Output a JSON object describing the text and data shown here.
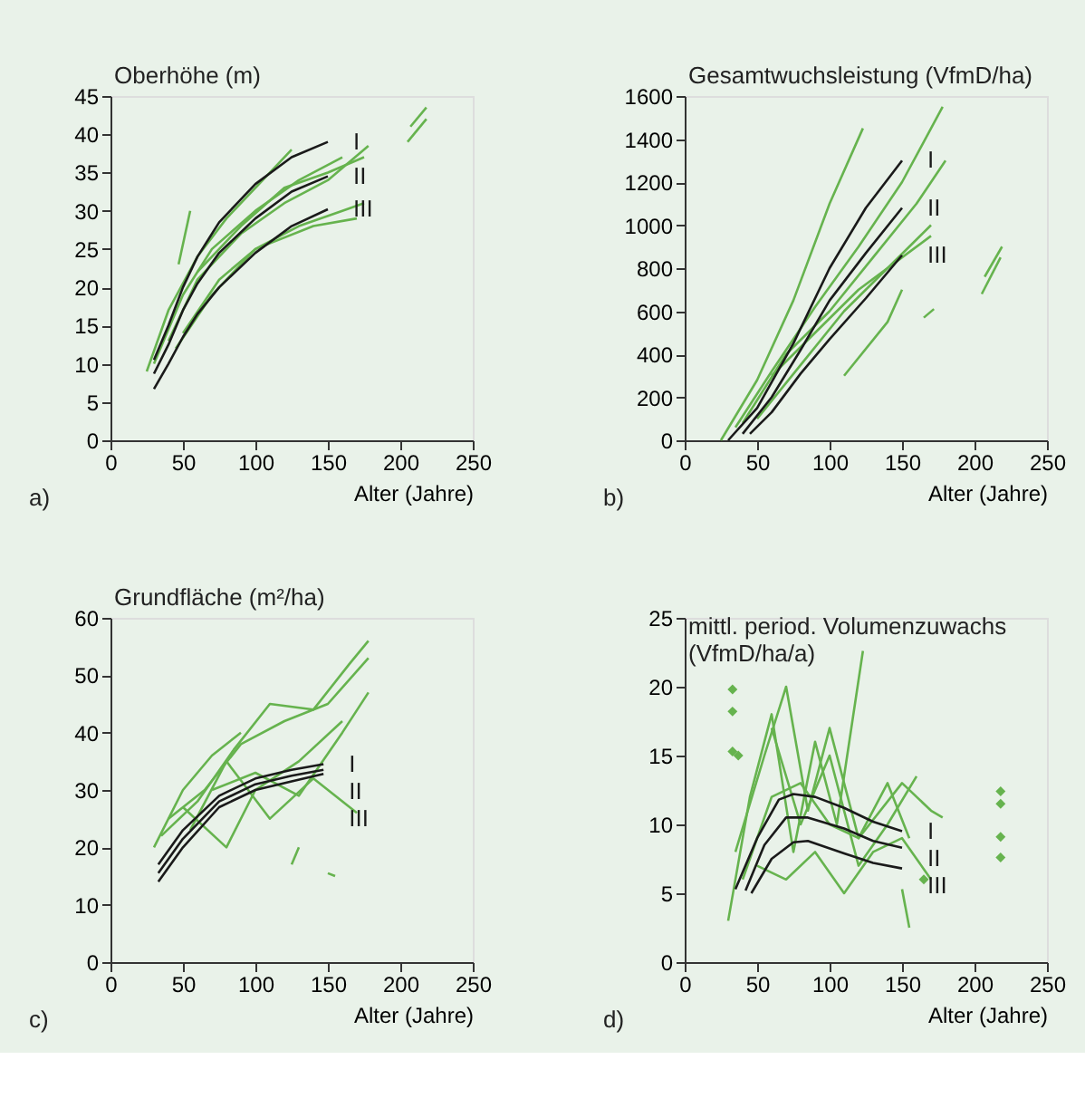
{
  "chart_data": [
    {
      "type": "line",
      "ylabel": "Oberhöhe (m)",
      "xlabel": "Alter (Jahre)",
      "xlim": [
        0,
        250
      ],
      "xticks": [
        0,
        50,
        100,
        150,
        200,
        250
      ],
      "ylim": [
        0,
        45
      ],
      "yticks": [
        0,
        5,
        10,
        15,
        20,
        25,
        30,
        35,
        40,
        45
      ],
      "grid": false,
      "series": [
        {
          "color": "#66b34e",
          "x": [
            25,
            40,
            60,
            80,
            100,
            125
          ],
          "values": [
            9,
            17,
            24,
            29,
            33,
            38
          ]
        },
        {
          "color": "#66b34e",
          "x": [
            30,
            50,
            70,
            100,
            130,
            160
          ],
          "values": [
            10,
            19,
            25,
            30,
            34,
            37
          ]
        },
        {
          "color": "#66b34e",
          "x": [
            40,
            60,
            90,
            120,
            150,
            178
          ],
          "values": [
            13,
            21,
            27,
            31,
            34,
            38.5
          ]
        },
        {
          "color": "#66b34e",
          "x": [
            45,
            70,
            100,
            130,
            160,
            175
          ],
          "values": [
            12,
            19,
            25,
            28,
            30,
            31
          ]
        },
        {
          "color": "#66b34e",
          "x": [
            50,
            75,
            100,
            140,
            170
          ],
          "values": [
            14,
            21,
            25,
            28,
            29
          ]
        },
        {
          "color": "#66b34e",
          "x": [
            60,
            90,
            120,
            150,
            175
          ],
          "values": [
            22,
            28,
            33,
            35,
            37
          ]
        },
        {
          "color": "#66b34e",
          "x": [
            47,
            55
          ],
          "values": [
            23,
            30
          ]
        },
        {
          "color": "#66b34e",
          "x": [
            205,
            218
          ],
          "values": [
            39,
            42
          ]
        },
        {
          "color": "#66b34e",
          "x": [
            207,
            218
          ],
          "values": [
            41,
            43.5
          ]
        },
        {
          "name": "I",
          "color": "#1a1a1a",
          "x": [
            30,
            40,
            50,
            60,
            75,
            100,
            125,
            150
          ],
          "values": [
            10.5,
            15,
            20,
            24,
            28.5,
            33.5,
            37,
            39
          ]
        },
        {
          "name": "II",
          "color": "#1a1a1a",
          "x": [
            30,
            40,
            50,
            60,
            75,
            100,
            125,
            150
          ],
          "values": [
            8.7,
            12.5,
            17,
            20.5,
            24.5,
            29,
            32.5,
            34.5
          ]
        },
        {
          "name": "III",
          "color": "#1a1a1a",
          "x": [
            30,
            40,
            50,
            60,
            75,
            100,
            125,
            150
          ],
          "values": [
            6.7,
            10,
            13.5,
            16.5,
            20,
            24.5,
            28,
            30.2
          ]
        }
      ],
      "annotations": [
        "a)"
      ]
    },
    {
      "type": "line",
      "ylabel": "Gesamtwuchsleistung (VfmD/ha)",
      "xlabel": "Alter (Jahre)",
      "xlim": [
        0,
        250
      ],
      "xticks": [
        0,
        50,
        100,
        150,
        200,
        250
      ],
      "ylim": [
        0,
        1600
      ],
      "yticks": [
        0,
        200,
        400,
        600,
        800,
        1000,
        1200,
        1400,
        1600
      ],
      "grid": false,
      "series": [
        {
          "color": "#66b34e",
          "x": [
            25,
            50,
            75,
            100,
            123
          ],
          "values": [
            0,
            280,
            650,
            1100,
            1450
          ]
        },
        {
          "color": "#66b34e",
          "x": [
            35,
            60,
            90,
            120,
            150,
            178
          ],
          "values": [
            60,
            320,
            620,
            900,
            1200,
            1550
          ]
        },
        {
          "color": "#66b34e",
          "x": [
            40,
            70,
            100,
            130,
            160,
            180
          ],
          "values": [
            80,
            400,
            600,
            850,
            1100,
            1300
          ]
        },
        {
          "color": "#66b34e",
          "x": [
            50,
            80,
            110,
            140,
            170
          ],
          "values": [
            100,
            350,
            600,
            800,
            1000
          ]
        },
        {
          "color": "#66b34e",
          "x": [
            60,
            90,
            120,
            150,
            170
          ],
          "values": [
            300,
            500,
            700,
            850,
            950
          ]
        },
        {
          "color": "#66b34e",
          "x": [
            110,
            140,
            150
          ],
          "values": [
            300,
            550,
            700
          ]
        },
        {
          "color": "#66b34e",
          "x": [
            165,
            172
          ],
          "values": [
            570,
            610
          ]
        },
        {
          "color": "#66b34e",
          "x": [
            205,
            218
          ],
          "values": [
            680,
            850
          ]
        },
        {
          "color": "#66b34e",
          "x": [
            207,
            219
          ],
          "values": [
            760,
            900
          ]
        },
        {
          "name": "I",
          "color": "#1a1a1a",
          "x": [
            30,
            50,
            75,
            100,
            125,
            150
          ],
          "values": [
            0,
            150,
            450,
            800,
            1080,
            1300
          ]
        },
        {
          "name": "II",
          "color": "#1a1a1a",
          "x": [
            40,
            60,
            80,
            100,
            125,
            150
          ],
          "values": [
            30,
            200,
            420,
            650,
            870,
            1080
          ]
        },
        {
          "name": "III",
          "color": "#1a1a1a",
          "x": [
            45,
            60,
            80,
            100,
            125,
            150
          ],
          "values": [
            30,
            130,
            310,
            470,
            660,
            860
          ]
        }
      ],
      "annotations": [
        "b)"
      ]
    },
    {
      "type": "line",
      "ylabel": "Grundfläche (m²/ha)",
      "xlabel": "Alter (Jahre)",
      "xlim": [
        0,
        250
      ],
      "xticks": [
        0,
        50,
        100,
        150,
        200,
        250
      ],
      "ylim": [
        0,
        60
      ],
      "yticks": [
        0,
        10,
        20,
        30,
        40,
        50,
        60
      ],
      "grid": false,
      "series": [
        {
          "color": "#66b34e",
          "x": [
            30,
            50,
            70,
            90
          ],
          "values": [
            20,
            30,
            36,
            40
          ]
        },
        {
          "color": "#66b34e",
          "x": [
            35,
            60,
            85,
            110,
            140,
            165,
            178
          ],
          "values": [
            22,
            28,
            37,
            45,
            44,
            52,
            56
          ]
        },
        {
          "color": "#66b34e",
          "x": [
            40,
            65,
            90,
            120,
            150,
            178
          ],
          "values": [
            25,
            30,
            38,
            42,
            45,
            53
          ]
        },
        {
          "color": "#66b34e",
          "x": [
            50,
            80,
            100,
            130,
            160
          ],
          "values": [
            27,
            20,
            30,
            35,
            42
          ]
        },
        {
          "color": "#66b34e",
          "x": [
            55,
            80,
            110,
            140,
            170
          ],
          "values": [
            23,
            35,
            25,
            32,
            26
          ]
        },
        {
          "color": "#66b34e",
          "x": [
            70,
            100,
            130,
            160,
            178
          ],
          "values": [
            30,
            33,
            29,
            40,
            47
          ]
        },
        {
          "color": "#66b34e",
          "x": [
            125,
            130
          ],
          "values": [
            17,
            20
          ]
        },
        {
          "color": "#66b34e",
          "x": [
            150,
            155
          ],
          "values": [
            15.5,
            15
          ]
        },
        {
          "name": "I",
          "color": "#1a1a1a",
          "x": [
            33,
            50,
            75,
            100,
            125,
            147
          ],
          "values": [
            17,
            23,
            29,
            32,
            33.5,
            34.5
          ]
        },
        {
          "name": "II",
          "color": "#1a1a1a",
          "x": [
            33,
            50,
            75,
            100,
            125,
            147
          ],
          "values": [
            15.5,
            21.5,
            28,
            31,
            32.5,
            33.5
          ]
        },
        {
          "name": "III",
          "color": "#1a1a1a",
          "x": [
            33,
            50,
            75,
            100,
            125,
            147
          ],
          "values": [
            14,
            20,
            27,
            30,
            31.5,
            32.8
          ]
        }
      ],
      "annotations": [
        "c)"
      ]
    },
    {
      "type": "line",
      "ylabel": "mittl. period. Volumenzuwachs\n(VfmD/ha/a)",
      "xlabel": "Alter (Jahre)",
      "xlim": [
        0,
        250
      ],
      "xticks": [
        0,
        50,
        100,
        150,
        200,
        250
      ],
      "ylim": [
        0,
        25
      ],
      "yticks": [
        0,
        5,
        10,
        15,
        20,
        25
      ],
      "grid": false,
      "series": [
        {
          "color": "#66b34e",
          "x": [
            30,
            45,
            60,
            75,
            90,
            105,
            123
          ],
          "values": [
            3,
            12,
            18,
            8,
            16,
            10,
            22.6
          ]
        },
        {
          "color": "#66b34e",
          "x": [
            35,
            55,
            70,
            85,
            100,
            120,
            140,
            155
          ],
          "values": [
            8,
            15,
            20,
            11,
            17,
            9,
            13,
            9
          ]
        },
        {
          "color": "#66b34e",
          "x": [
            40,
            60,
            80,
            100,
            120,
            150,
            170,
            178
          ],
          "values": [
            6,
            12,
            13,
            10,
            9,
            13,
            11,
            10.5
          ]
        },
        {
          "color": "#66b34e",
          "x": [
            50,
            70,
            90,
            110,
            130,
            150,
            170
          ],
          "values": [
            7,
            6,
            8,
            5,
            8,
            9,
            6
          ]
        },
        {
          "color": "#66b34e",
          "x": [
            60,
            80,
            100,
            120,
            140,
            160
          ],
          "values": [
            17,
            10,
            15,
            7,
            10,
            13.5
          ]
        },
        {
          "color": "#66b34e",
          "x": [
            150,
            155
          ],
          "values": [
            5.3,
            2.5
          ]
        },
        {
          "type": "scatter",
          "marker": "diamond",
          "color": "#66b34e",
          "x": [
            33,
            33,
            33,
            37,
            218,
            218,
            218,
            218,
            165
          ],
          "values": [
            19.8,
            18.2,
            15.3,
            15,
            12.4,
            11.5,
            9.1,
            7.6,
            6
          ]
        },
        {
          "name": "I",
          "color": "#1a1a1a",
          "x": [
            35,
            50,
            65,
            75,
            90,
            110,
            130,
            150
          ],
          "values": [
            5.3,
            9,
            11.8,
            12.2,
            12,
            11.2,
            10.2,
            9.5
          ]
        },
        {
          "name": "II",
          "color": "#1a1a1a",
          "x": [
            42,
            55,
            70,
            85,
            110,
            130,
            150
          ],
          "values": [
            5.2,
            8.5,
            10.5,
            10.5,
            9.7,
            8.8,
            8.3
          ]
        },
        {
          "name": "III",
          "color": "#1a1a1a",
          "x": [
            46,
            60,
            75,
            85,
            110,
            130,
            150
          ],
          "values": [
            5,
            7.5,
            8.7,
            8.8,
            7.9,
            7.2,
            6.8
          ]
        }
      ],
      "annotations": [
        "d)"
      ]
    }
  ]
}
